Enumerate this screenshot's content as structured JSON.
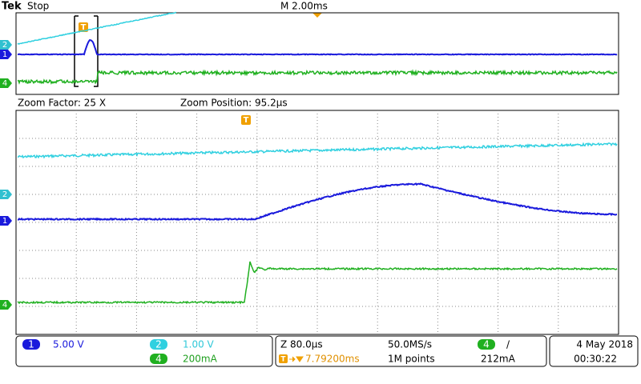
{
  "header": {
    "brand": "Tek",
    "status": "Stop",
    "timebase": "M 2.00ms",
    "trigger_marker": "T"
  },
  "zoom": {
    "factor": "Zoom Factor: 25 X",
    "position": "Zoom Position: 95.2µs",
    "trigger_marker": "T"
  },
  "channels": [
    {
      "number": "1",
      "scale": "5.00 V"
    },
    {
      "number": "2",
      "scale": "1.00 V"
    },
    {
      "number": "4",
      "scale": "200mA"
    }
  ],
  "acquisition": {
    "zoom_scale": "Z 80.0µs",
    "trigger_icon": "T",
    "trigger_time": "7.79200ms",
    "sample_rate": "50.0MS/s",
    "record_length": "1M points",
    "trigger_source": "4",
    "trigger_slope": "/",
    "trigger_level": "212mA"
  },
  "clock": {
    "date": "4 May 2018",
    "time": "00:30:22"
  }
}
